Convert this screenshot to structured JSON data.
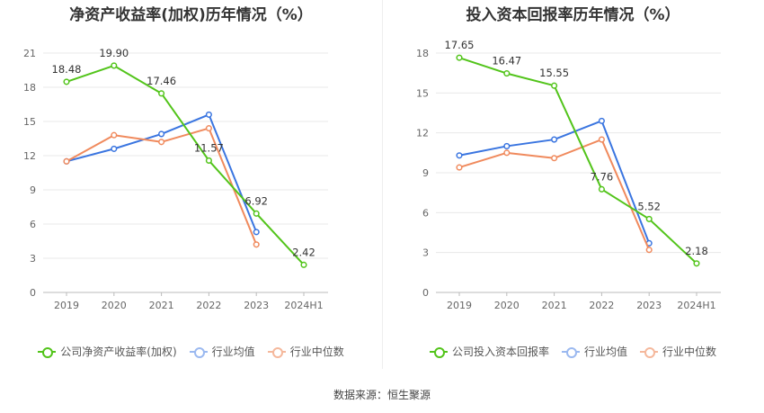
{
  "source": "数据来源：恒生聚源",
  "colors": {
    "company": "#52c41a",
    "avg": "#3a75e0",
    "median": "#f08a5d"
  },
  "chart_data": [
    {
      "type": "line",
      "title": "净资产收益率(加权)历年情况（%）",
      "categories": [
        "2019",
        "2020",
        "2021",
        "2022",
        "2023",
        "2024H1"
      ],
      "ylim": [
        0,
        21
      ],
      "yticks": [
        0,
        3,
        6,
        9,
        12,
        15,
        18,
        21
      ],
      "grid": true,
      "legend_position": "bottom",
      "series": [
        {
          "name": "公司净资产收益率(加权)",
          "key": "company",
          "values": [
            18.48,
            19.9,
            17.46,
            11.57,
            6.92,
            2.42
          ],
          "labels": [
            "18.48",
            "19.90",
            "17.46",
            "11.57",
            "6.92",
            "2.42"
          ]
        },
        {
          "name": "行业均值",
          "key": "avg",
          "values": [
            11.5,
            12.6,
            13.9,
            15.6,
            5.3,
            null
          ]
        },
        {
          "name": "行业中位数",
          "key": "median",
          "values": [
            11.5,
            13.8,
            13.2,
            14.4,
            4.2,
            null
          ]
        }
      ]
    },
    {
      "type": "line",
      "title": "投入资本回报率历年情况（%）",
      "categories": [
        "2019",
        "2020",
        "2021",
        "2022",
        "2023",
        "2024H1"
      ],
      "ylim": [
        0,
        18
      ],
      "yticks": [
        0,
        3,
        6,
        9,
        12,
        15,
        18
      ],
      "grid": true,
      "legend_position": "bottom",
      "series": [
        {
          "name": "公司投入资本回报率",
          "key": "company",
          "values": [
            17.65,
            16.47,
            15.55,
            7.76,
            5.52,
            2.18
          ],
          "labels": [
            "17.65",
            "16.47",
            "15.55",
            "7.76",
            "5.52",
            "2.18"
          ]
        },
        {
          "name": "行业均值",
          "key": "avg",
          "values": [
            10.3,
            11.0,
            11.5,
            12.9,
            3.7,
            null
          ]
        },
        {
          "name": "行业中位数",
          "key": "median",
          "values": [
            9.4,
            10.5,
            10.1,
            11.5,
            3.2,
            null
          ]
        }
      ]
    }
  ]
}
